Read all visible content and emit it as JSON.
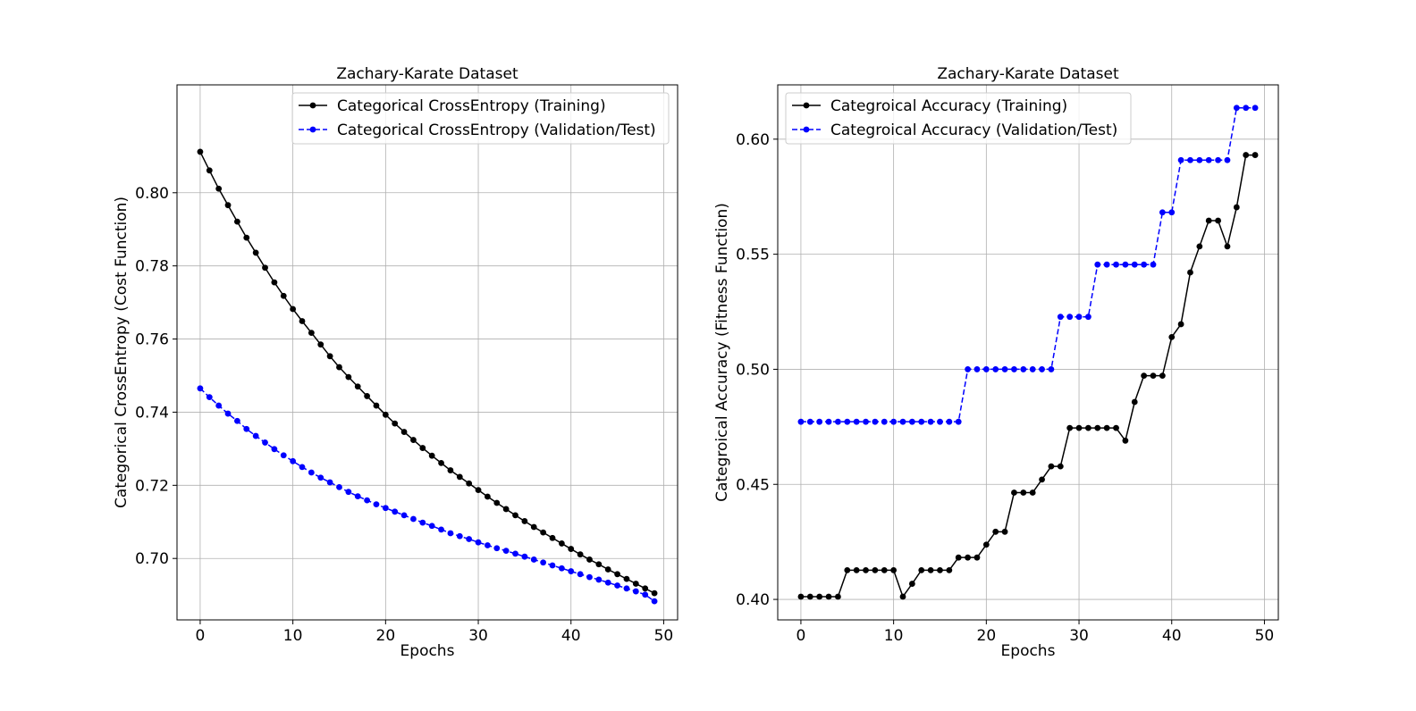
{
  "chart_data": [
    {
      "type": "line",
      "title": "Zachary-Karate Dataset",
      "xlabel": "Epochs",
      "ylabel": "Categorical CrossEntropy (Cost Function)",
      "xlim": [
        -2.5,
        51.5
      ],
      "ylim": [
        0.6832,
        0.8295
      ],
      "xticks": [
        0,
        10,
        20,
        30,
        40,
        50
      ],
      "xtick_labels": [
        "0",
        "10",
        "20",
        "30",
        "40",
        "50"
      ],
      "yticks": [
        0.7,
        0.72,
        0.74,
        0.76,
        0.78,
        0.8
      ],
      "ytick_labels": [
        "0.70",
        "0.72",
        "0.74",
        "0.76",
        "0.78",
        "0.80"
      ],
      "grid": true,
      "legend_position": "top-right",
      "series": [
        {
          "name": "Categorical CrossEntropy (Training)",
          "color": "#000000",
          "linestyle": "solid",
          "marker": "circle",
          "values": [
            0.8112,
            0.8061,
            0.8011,
            0.7966,
            0.7921,
            0.7877,
            0.7836,
            0.7795,
            0.7755,
            0.7718,
            0.7682,
            0.7649,
            0.7617,
            0.7585,
            0.7553,
            0.7523,
            0.7496,
            0.747,
            0.7444,
            0.7418,
            0.7393,
            0.7369,
            0.7346,
            0.7324,
            0.7302,
            0.7281,
            0.7261,
            0.7241,
            0.7223,
            0.7205,
            0.7187,
            0.7169,
            0.7152,
            0.7135,
            0.7118,
            0.7102,
            0.7086,
            0.7071,
            0.7056,
            0.7041,
            0.7026,
            0.7011,
            0.6997,
            0.6984,
            0.697,
            0.6957,
            0.6944,
            0.6931,
            0.6918,
            0.6905
          ]
        },
        {
          "name": "Categorical CrossEntropy (Validation/Test)",
          "color": "#0000ff",
          "linestyle": "dashed",
          "marker": "circle",
          "values": [
            0.7465,
            0.7441,
            0.7418,
            0.7396,
            0.7376,
            0.7354,
            0.7335,
            0.7317,
            0.7299,
            0.7282,
            0.7266,
            0.725,
            0.7235,
            0.7221,
            0.7208,
            0.7195,
            0.7182,
            0.717,
            0.7159,
            0.7148,
            0.7138,
            0.7128,
            0.7118,
            0.7108,
            0.7098,
            0.7089,
            0.7079,
            0.7069,
            0.7061,
            0.7053,
            0.7044,
            0.7036,
            0.7028,
            0.7021,
            0.7013,
            0.7005,
            0.6997,
            0.6989,
            0.6981,
            0.6973,
            0.6965,
            0.6957,
            0.6949,
            0.6942,
            0.6934,
            0.6926,
            0.6918,
            0.691,
            0.6901,
            0.6883
          ]
        }
      ]
    },
    {
      "type": "line",
      "title": "Zachary-Karate Dataset",
      "xlabel": "Epochs",
      "ylabel": "Categroical Accuracy (Fitness Function)",
      "xlim": [
        -2.5,
        51.5
      ],
      "ylim": [
        0.3911,
        0.6236
      ],
      "xticks": [
        0,
        10,
        20,
        30,
        40,
        50
      ],
      "xtick_labels": [
        "0",
        "10",
        "20",
        "30",
        "40",
        "50"
      ],
      "yticks": [
        0.4,
        0.45,
        0.5,
        0.55,
        0.6
      ],
      "ytick_labels": [
        "0.40",
        "0.45",
        "0.50",
        "0.55",
        "0.60"
      ],
      "grid": true,
      "legend_position": "top-left",
      "series": [
        {
          "name": "Categroical Accuracy (Training)",
          "color": "#000000",
          "linestyle": "solid",
          "marker": "circle",
          "values": [
            0.4012,
            0.4012,
            0.4012,
            0.4012,
            0.4012,
            0.4127,
            0.4127,
            0.4127,
            0.4127,
            0.4127,
            0.4127,
            0.4012,
            0.4068,
            0.4127,
            0.4127,
            0.4127,
            0.4127,
            0.4182,
            0.4182,
            0.4182,
            0.4238,
            0.4294,
            0.4294,
            0.4464,
            0.4464,
            0.4464,
            0.4521,
            0.4578,
            0.4578,
            0.4745,
            0.4745,
            0.4745,
            0.4745,
            0.4745,
            0.4745,
            0.469,
            0.4858,
            0.4972,
            0.4972,
            0.4972,
            0.514,
            0.5196,
            0.5421,
            0.5534,
            0.5646,
            0.5646,
            0.5534,
            0.5704,
            0.5931,
            0.5931
          ]
        },
        {
          "name": "Categroical Accuracy (Validation/Test)",
          "color": "#0000ff",
          "linestyle": "dashed",
          "marker": "circle",
          "values": [
            0.4772,
            0.4772,
            0.4772,
            0.4772,
            0.4772,
            0.4772,
            0.4772,
            0.4772,
            0.4772,
            0.4772,
            0.4772,
            0.4772,
            0.4772,
            0.4772,
            0.4772,
            0.4772,
            0.4772,
            0.4772,
            0.5,
            0.5,
            0.5,
            0.5,
            0.5,
            0.5,
            0.5,
            0.5,
            0.5,
            0.5,
            0.5228,
            0.5228,
            0.5228,
            0.5228,
            0.5455,
            0.5455,
            0.5455,
            0.5455,
            0.5455,
            0.5455,
            0.5455,
            0.5682,
            0.5682,
            0.5909,
            0.5909,
            0.5909,
            0.5909,
            0.5909,
            0.5909,
            0.6136,
            0.6136,
            0.6136
          ]
        }
      ]
    }
  ]
}
